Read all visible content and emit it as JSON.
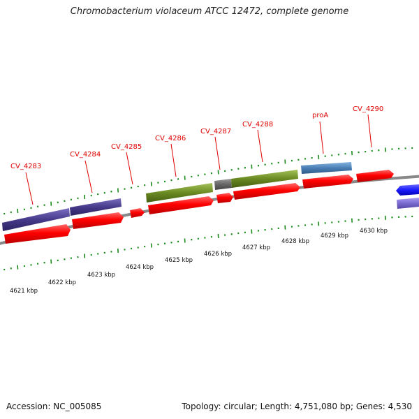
{
  "title": "Chromobacterium violaceum ATCC 12472, complete genome",
  "footer": {
    "accession": "Accession: NC_005085",
    "summary": "Topology: circular; Length: 4,751,080 bp; Genes: 4,530"
  },
  "colors": {
    "cds": "#ff0000",
    "label": "#e00000",
    "backbone": "#888888",
    "gc_ticks": "#1a8a1a",
    "purple": "#4a3d8f",
    "olive": "#6f8f24",
    "gray": "#666666",
    "steelblue": "#4a7fb5",
    "blue": "#1a1aff",
    "lavender": "#7a6ad0"
  },
  "scale_labels": [
    "4621 kbp",
    "4622 kbp",
    "4623 kbp",
    "4624 kbp",
    "4625 kbp",
    "4626 kbp",
    "4627 kbp",
    "4628 kbp",
    "4629 kbp",
    "4630 kbp"
  ],
  "gene_labels": [
    "CV_4283",
    "CV_4284",
    "CV_4285",
    "CV_4286",
    "CV_4287",
    "CV_4288",
    "proA",
    "CV_4290"
  ]
}
